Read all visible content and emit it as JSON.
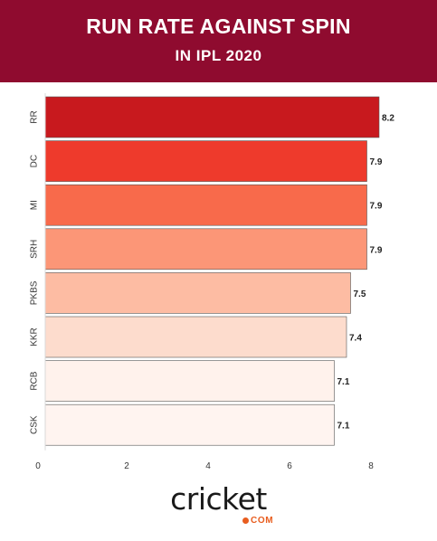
{
  "header": {
    "title": "RUN RATE AGAINST SPIN",
    "subtitle": "IN IPL 2020"
  },
  "logo": {
    "text": "cricket",
    "sub": "COM"
  },
  "chart_data": {
    "type": "bar",
    "orientation": "horizontal",
    "categories": [
      "RR",
      "DC",
      "MI",
      "SRH",
      "PKBS",
      "KKR",
      "RCB",
      "CSK"
    ],
    "values": [
      8.2,
      7.9,
      7.9,
      7.9,
      7.5,
      7.4,
      7.1,
      7.1
    ],
    "colors": [
      "#c8191e",
      "#ee3a2c",
      "#f86a4b",
      "#fc9677",
      "#fdbca3",
      "#fddccd",
      "#fff2ec",
      "#fff4f0"
    ],
    "xticks": [
      0,
      2,
      4,
      6,
      8
    ],
    "xlim": [
      0,
      8.5
    ],
    "grid": false,
    "title": "",
    "xlabel": "",
    "ylabel": ""
  }
}
